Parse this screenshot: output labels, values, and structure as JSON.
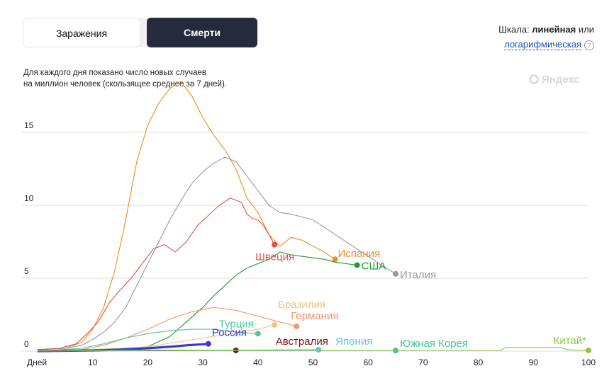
{
  "tabs": {
    "infections": "Заражения",
    "deaths": "Смерти"
  },
  "scale": {
    "prefix": "Шкала: ",
    "linear": "линейная",
    "or": " или",
    "log": "логарифмическая",
    "help": "?"
  },
  "note": {
    "line1": "Для каждого дня показано число новых случаев",
    "line2": "на миллион человек (скользящее среднее за 7 дней)."
  },
  "logo": "Яндекс",
  "chart_data": {
    "type": "line",
    "x_axis": {
      "label": "Дней",
      "ticks": [
        10,
        20,
        30,
        40,
        50,
        60,
        70,
        80,
        90,
        100
      ],
      "range": [
        0,
        100
      ]
    },
    "y_axis": {
      "ticks": [
        0,
        5,
        10,
        15
      ],
      "range": [
        0,
        18.5
      ],
      "scale": "linear"
    },
    "grid": true,
    "series": [
      {
        "name": "Испания",
        "color": "#f28c1e",
        "points": [
          [
            0,
            0.1
          ],
          [
            5,
            0.2
          ],
          [
            8,
            0.6
          ],
          [
            10,
            1.5
          ],
          [
            12,
            3.0
          ],
          [
            14,
            5.5
          ],
          [
            16,
            9.0
          ],
          [
            18,
            13.0
          ],
          [
            20,
            15.5
          ],
          [
            22,
            17.0
          ],
          [
            24,
            18.0
          ],
          [
            26,
            18.5
          ],
          [
            28,
            17.5
          ],
          [
            30,
            16.0
          ],
          [
            32,
            14.8
          ],
          [
            34,
            13.8
          ],
          [
            36,
            12.5
          ],
          [
            38,
            10.5
          ],
          [
            40,
            9.5
          ],
          [
            42,
            8.0
          ],
          [
            44,
            7.2
          ],
          [
            46,
            7.8
          ],
          [
            48,
            7.6
          ],
          [
            50,
            7.2
          ],
          [
            52,
            6.8
          ],
          [
            54,
            6.3
          ]
        ]
      },
      {
        "name": "Италия",
        "color": "#999999",
        "points": [
          [
            0,
            0.1
          ],
          [
            5,
            0.2
          ],
          [
            8,
            0.4
          ],
          [
            10,
            0.8
          ],
          [
            12,
            1.3
          ],
          [
            14,
            2.0
          ],
          [
            16,
            3.0
          ],
          [
            18,
            4.5
          ],
          [
            20,
            6.0
          ],
          [
            22,
            7.5
          ],
          [
            24,
            9.0
          ],
          [
            26,
            10.3
          ],
          [
            28,
            11.5
          ],
          [
            30,
            12.3
          ],
          [
            32,
            12.9
          ],
          [
            34,
            13.3
          ],
          [
            36,
            13.0
          ],
          [
            38,
            12.0
          ],
          [
            40,
            11.0
          ],
          [
            42,
            10.0
          ],
          [
            44,
            9.5
          ],
          [
            46,
            9.4
          ],
          [
            48,
            9.2
          ],
          [
            50,
            9.0
          ],
          [
            52,
            8.5
          ],
          [
            54,
            8.0
          ],
          [
            56,
            7.5
          ],
          [
            58,
            7.0
          ],
          [
            60,
            6.5
          ],
          [
            62,
            6.0
          ],
          [
            65,
            5.3
          ]
        ]
      },
      {
        "name": "Швеция",
        "color": "#e04e4e",
        "points": [
          [
            0,
            0.1
          ],
          [
            4,
            0.2
          ],
          [
            7,
            0.5
          ],
          [
            9,
            1.2
          ],
          [
            11,
            2.0
          ],
          [
            13,
            3.3
          ],
          [
            15,
            4.2
          ],
          [
            17,
            5.0
          ],
          [
            19,
            6.0
          ],
          [
            21,
            7.0
          ],
          [
            23,
            7.3
          ],
          [
            25,
            6.8
          ],
          [
            27,
            7.5
          ],
          [
            29,
            8.6
          ],
          [
            31,
            9.3
          ],
          [
            33,
            10.0
          ],
          [
            35,
            10.5
          ],
          [
            37,
            10.2
          ],
          [
            38,
            9.4
          ],
          [
            39,
            9.1
          ],
          [
            40,
            9.0
          ],
          [
            41,
            8.6
          ],
          [
            42,
            8.0
          ],
          [
            43,
            7.3
          ]
        ]
      },
      {
        "name": "США",
        "color": "#1f9a2e",
        "points": [
          [
            0,
            0
          ],
          [
            10,
            0.05
          ],
          [
            20,
            0.3
          ],
          [
            24,
            1.0
          ],
          [
            27,
            2.0
          ],
          [
            30,
            3.0
          ],
          [
            32,
            3.8
          ],
          [
            34,
            4.5
          ],
          [
            36,
            5.2
          ],
          [
            38,
            5.7
          ],
          [
            40,
            6.0
          ],
          [
            42,
            6.3
          ],
          [
            44,
            6.8
          ],
          [
            46,
            6.6
          ],
          [
            48,
            6.5
          ],
          [
            50,
            6.4
          ],
          [
            52,
            6.3
          ],
          [
            54,
            6.1
          ],
          [
            56,
            6.0
          ],
          [
            58,
            5.9
          ]
        ]
      },
      {
        "name": "Бразилия",
        "color": "#f5c083",
        "points": [
          [
            0,
            0
          ],
          [
            10,
            0.1
          ],
          [
            20,
            0.3
          ],
          [
            25,
            0.6
          ],
          [
            30,
            0.9
          ],
          [
            35,
            1.2
          ],
          [
            40,
            1.5
          ],
          [
            43,
            1.8
          ]
        ]
      },
      {
        "name": "Германия",
        "color": "#f2956a",
        "points": [
          [
            0,
            0
          ],
          [
            8,
            0.1
          ],
          [
            12,
            0.4
          ],
          [
            16,
            0.9
          ],
          [
            20,
            1.5
          ],
          [
            24,
            2.2
          ],
          [
            28,
            2.7
          ],
          [
            32,
            3.0
          ],
          [
            34,
            2.9
          ],
          [
            36,
            2.8
          ],
          [
            38,
            2.6
          ],
          [
            40,
            2.4
          ],
          [
            42,
            2.2
          ],
          [
            44,
            2.0
          ],
          [
            46,
            1.8
          ],
          [
            47,
            1.7
          ]
        ]
      },
      {
        "name": "Турция",
        "color": "#4fc79a",
        "points": [
          [
            0,
            0
          ],
          [
            8,
            0.2
          ],
          [
            12,
            0.5
          ],
          [
            16,
            0.9
          ],
          [
            20,
            1.2
          ],
          [
            24,
            1.4
          ],
          [
            28,
            1.5
          ],
          [
            32,
            1.5
          ],
          [
            36,
            1.3
          ],
          [
            40,
            1.2
          ]
        ]
      },
      {
        "name": "Россия",
        "color": "#3b37d9",
        "points": [
          [
            0,
            0
          ],
          [
            10,
            0.05
          ],
          [
            15,
            0.1
          ],
          [
            20,
            0.2
          ],
          [
            24,
            0.3
          ],
          [
            27,
            0.4
          ],
          [
            31,
            0.5
          ]
        ]
      },
      {
        "name": "Австралия",
        "color": "#7a1010",
        "points": [
          [
            0,
            0
          ],
          [
            10,
            0.02
          ],
          [
            20,
            0.03
          ],
          [
            30,
            0.05
          ],
          [
            36,
            0.05
          ]
        ]
      },
      {
        "name": "Япония",
        "color": "#5bc3e6",
        "points": [
          [
            0,
            0
          ],
          [
            10,
            0.02
          ],
          [
            20,
            0.04
          ],
          [
            30,
            0.07
          ],
          [
            40,
            0.08
          ],
          [
            51,
            0.1
          ]
        ]
      },
      {
        "name": "Южная Корея",
        "color": "#3fc1a3",
        "points": [
          [
            0,
            0
          ],
          [
            10,
            0.05
          ],
          [
            20,
            0.08
          ],
          [
            30,
            0.07
          ],
          [
            40,
            0.06
          ],
          [
            50,
            0.05
          ],
          [
            65,
            0.04
          ]
        ]
      },
      {
        "name": "Китай*",
        "color": "#8cc63f",
        "points": [
          [
            0,
            0.02
          ],
          [
            20,
            0.05
          ],
          [
            40,
            0.04
          ],
          [
            60,
            0.05
          ],
          [
            84,
            0.05
          ],
          [
            85,
            0.25
          ],
          [
            95,
            0.25
          ],
          [
            96,
            0.1
          ],
          [
            100,
            0.05
          ]
        ]
      }
    ]
  }
}
